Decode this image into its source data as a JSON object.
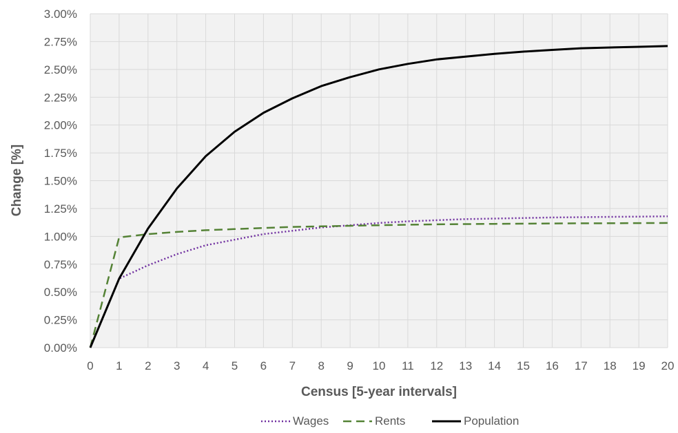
{
  "chart_data": {
    "type": "line",
    "title": "",
    "xlabel": "Census [5-year intervals]",
    "ylabel": "Change [%]",
    "x": [
      0,
      1,
      2,
      3,
      4,
      5,
      6,
      7,
      8,
      9,
      10,
      11,
      12,
      13,
      14,
      15,
      16,
      17,
      18,
      19,
      20
    ],
    "xlim": [
      0,
      20
    ],
    "ylim": [
      0,
      3.0
    ],
    "y_ticks": [
      0,
      0.25,
      0.5,
      0.75,
      1.0,
      1.25,
      1.5,
      1.75,
      2.0,
      2.25,
      2.5,
      2.75,
      3.0
    ],
    "y_tick_labels": [
      "0.00%",
      "0.25%",
      "0.50%",
      "0.75%",
      "1.00%",
      "1.25%",
      "1.50%",
      "1.75%",
      "2.00%",
      "2.25%",
      "2.50%",
      "2.75%",
      "3.00%"
    ],
    "x_tick_labels": [
      "0",
      "1",
      "2",
      "3",
      "4",
      "5",
      "6",
      "7",
      "8",
      "9",
      "10",
      "11",
      "12",
      "13",
      "14",
      "15",
      "16",
      "17",
      "18",
      "19",
      "20"
    ],
    "grid": true,
    "legend_position": "bottom",
    "series": [
      {
        "name": "Wages",
        "style": "dotted",
        "color": "#7030a0",
        "values": [
          0,
          0.62,
          0.74,
          0.84,
          0.92,
          0.97,
          1.02,
          1.05,
          1.08,
          1.1,
          1.12,
          1.135,
          1.145,
          1.155,
          1.16,
          1.165,
          1.17,
          1.172,
          1.175,
          1.177,
          1.18
        ]
      },
      {
        "name": "Rents",
        "style": "dashed",
        "color": "#548235",
        "values": [
          0,
          0.99,
          1.02,
          1.04,
          1.055,
          1.065,
          1.075,
          1.085,
          1.09,
          1.095,
          1.1,
          1.105,
          1.108,
          1.11,
          1.112,
          1.114,
          1.116,
          1.117,
          1.118,
          1.119,
          1.12
        ]
      },
      {
        "name": "Population",
        "style": "solid",
        "color": "#000000",
        "values": [
          0,
          0.62,
          1.07,
          1.43,
          1.72,
          1.94,
          2.11,
          2.24,
          2.35,
          2.43,
          2.5,
          2.55,
          2.59,
          2.615,
          2.64,
          2.66,
          2.675,
          2.69,
          2.697,
          2.703,
          2.71
        ]
      }
    ],
    "plot_background": "#f2f2f2",
    "grid_color": "#d9d9d9"
  }
}
